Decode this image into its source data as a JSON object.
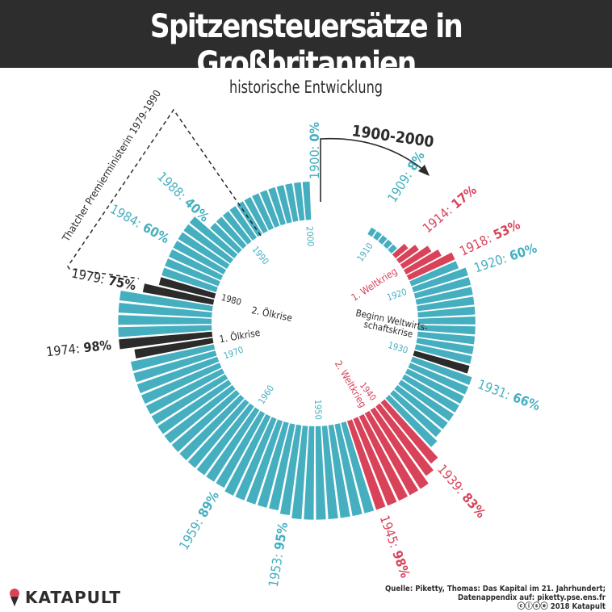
{
  "header": {
    "title": "Spitzensteuersätze in Großbritannien",
    "subtitle": "historische Entwicklung"
  },
  "colors": {
    "normal": "#45afc0",
    "war": "#d9435a",
    "crisis": "#2b2b2b",
    "header_bg": "#2d2d2d"
  },
  "chart_data": {
    "type": "radial-bar",
    "title": "Spitzensteuersätze in Großbritannien",
    "subtitle": "historische Entwicklung",
    "range_label": "1900-2000",
    "unit": "%",
    "years": [
      1900,
      1901,
      1902,
      1903,
      1904,
      1905,
      1906,
      1907,
      1908,
      1909,
      1910,
      1911,
      1912,
      1913,
      1914,
      1915,
      1916,
      1917,
      1918,
      1919,
      1920,
      1921,
      1922,
      1923,
      1924,
      1925,
      1926,
      1927,
      1928,
      1929,
      1930,
      1931,
      1932,
      1933,
      1934,
      1935,
      1936,
      1937,
      1938,
      1939,
      1940,
      1941,
      1942,
      1943,
      1944,
      1945,
      1946,
      1947,
      1948,
      1949,
      1950,
      1951,
      1952,
      1953,
      1954,
      1955,
      1956,
      1957,
      1958,
      1959,
      1960,
      1961,
      1962,
      1963,
      1964,
      1965,
      1966,
      1967,
      1968,
      1969,
      1970,
      1971,
      1972,
      1973,
      1974,
      1975,
      1976,
      1977,
      1978,
      1979,
      1980,
      1981,
      1982,
      1983,
      1984,
      1985,
      1986,
      1987,
      1988,
      1989,
      1990,
      1991,
      1992,
      1993,
      1994,
      1995,
      1996,
      1997,
      1998,
      1999,
      2000
    ],
    "values": [
      0,
      0,
      0,
      0,
      0,
      0,
      0,
      0,
      0,
      8,
      8,
      8,
      8,
      8,
      17,
      25,
      35,
      42,
      53,
      53,
      60,
      60,
      60,
      60,
      60,
      60,
      60,
      60,
      60,
      60,
      60,
      66,
      66,
      66,
      66,
      66,
      66,
      66,
      70,
      83,
      90,
      98,
      98,
      98,
      98,
      98,
      98,
      98,
      98,
      98,
      98,
      98,
      98,
      95,
      92,
      92,
      92,
      92,
      92,
      89,
      89,
      89,
      89,
      89,
      89,
      89,
      89,
      89,
      89,
      89,
      89,
      89,
      89,
      83,
      98,
      98,
      98,
      98,
      98,
      75,
      60,
      60,
      60,
      60,
      60,
      60,
      60,
      60,
      40,
      40,
      40,
      40,
      40,
      40,
      40,
      40,
      40,
      40,
      40,
      40,
      40
    ],
    "highlight": {
      "war": [
        [
          1914,
          1918
        ],
        [
          1939,
          1945
        ]
      ],
      "crisis": [
        [
          1930,
          1930
        ],
        [
          1973,
          1974
        ],
        [
          1979,
          1980
        ]
      ]
    },
    "value_labels": [
      {
        "year": 1900,
        "year_text": "1900:",
        "value_text": "0%",
        "color": "normal"
      },
      {
        "year": 1909,
        "year_text": "1909:",
        "value_text": "8%",
        "color": "normal"
      },
      {
        "year": 1914,
        "year_text": "1914:",
        "value_text": "17%",
        "color": "war"
      },
      {
        "year": 1918,
        "year_text": "1918:",
        "value_text": "53%",
        "color": "war"
      },
      {
        "year": 1920,
        "year_text": "1920:",
        "value_text": "60%",
        "color": "normal"
      },
      {
        "year": 1931,
        "year_text": "1931:",
        "value_text": "66%",
        "color": "normal"
      },
      {
        "year": 1939,
        "year_text": "1939:",
        "value_text": "83%",
        "color": "war"
      },
      {
        "year": 1945,
        "year_text": "1945:",
        "value_text": "98%",
        "color": "war"
      },
      {
        "year": 1953,
        "year_text": "1953:",
        "value_text": "95%",
        "color": "normal"
      },
      {
        "year": 1959,
        "year_text": "1959:",
        "value_text": "89%",
        "color": "normal"
      },
      {
        "year": 1974,
        "year_text": "1974:",
        "value_text": "98%",
        "color": "crisis"
      },
      {
        "year": 1979,
        "year_text": "1979:",
        "value_text": "75%",
        "color": "crisis"
      },
      {
        "year": 1984,
        "year_text": "1984:",
        "value_text": "60%",
        "color": "normal"
      },
      {
        "year": 1988,
        "year_text": "1988:",
        "value_text": "40%",
        "color": "normal"
      }
    ],
    "decade_labels": [
      {
        "year": 1910,
        "text": "1910",
        "color": "normal"
      },
      {
        "year": 1920,
        "text": "1920",
        "color": "normal"
      },
      {
        "year": 1930,
        "text": "1930",
        "color": "normal"
      },
      {
        "year": 1940,
        "text": "1940",
        "color": "war"
      },
      {
        "year": 1950,
        "text": "1950",
        "color": "normal"
      },
      {
        "year": 1960,
        "text": "1960",
        "color": "normal"
      },
      {
        "year": 1970,
        "text": "1970",
        "color": "normal"
      },
      {
        "year": 1980,
        "text": "1980",
        "color": "crisis"
      },
      {
        "year": 1990,
        "text": "1990",
        "color": "normal"
      },
      {
        "year": 2000,
        "text": "2000",
        "color": "normal"
      }
    ],
    "event_labels": [
      {
        "year": 1916,
        "text": "1. Weltkrieg",
        "color": "war"
      },
      {
        "year": 1942,
        "text": "2. Weltkrieg",
        "color": "war"
      },
      {
        "year": 1973,
        "text": "1. Ölkrise",
        "color": "crisis"
      },
      {
        "year": 1979,
        "text": "2. Ölkrise",
        "color": "crisis"
      }
    ],
    "crisis_label": {
      "line1": "Beginn Weltwirts-",
      "line2": "schaftskrise"
    },
    "thatcher_label": "Thatcher Premierministerin 1979-1990"
  },
  "footer": {
    "logo": "KATAPULT",
    "source_line1": "Quelle: Piketty, Thomas: Das Kapital im 21. Jahrhundert;",
    "source_line2": "Datenappendix auf: piketty.pse.ens.fr",
    "source_line3": "ⓒⓘⓢⓔ 2018 Katapult"
  }
}
